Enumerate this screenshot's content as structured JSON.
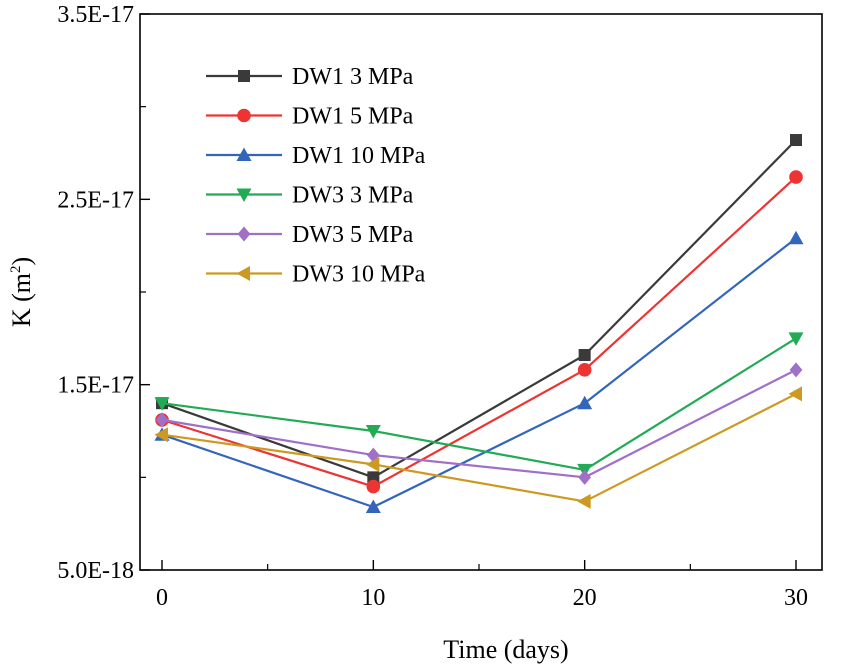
{
  "chart_data": {
    "type": "line",
    "title": "",
    "xlabel": "Time (days)",
    "ylabel": "K (m²)",
    "ylabel_parts": {
      "base": "K (m",
      "sup": "2",
      "close": ")"
    },
    "x": [
      0,
      10,
      20,
      30
    ],
    "xlim": [
      0,
      31
    ],
    "ylim": [
      5e-18,
      3.5e-17
    ],
    "xticks": [
      0,
      10,
      20,
      30
    ],
    "xtick_labels": [
      "0",
      "10",
      "20",
      "30"
    ],
    "yticks": [
      5e-18,
      1.5e-17,
      2.5e-17,
      3.5e-17
    ],
    "ytick_labels": [
      "5.0E-18",
      "1.5E-17",
      "2.5E-17",
      "3.5E-17"
    ],
    "grid": false,
    "legend_position": "top-left",
    "series": [
      {
        "name": "DW1 3 MPa",
        "color": "#3a3a3a",
        "marker": "square",
        "values": [
          1.4e-17,
          1e-17,
          1.66e-17,
          2.82e-17
        ]
      },
      {
        "name": "DW1 5 MPa",
        "color": "#ee3333",
        "marker": "circle",
        "values": [
          1.31e-17,
          9.5e-18,
          1.58e-17,
          2.62e-17
        ]
      },
      {
        "name": "DW1 10 MPa",
        "color": "#3366bb",
        "marker": "triangle-up",
        "values": [
          1.23e-17,
          8.4e-18,
          1.4e-17,
          2.29e-17
        ]
      },
      {
        "name": "DW3 3 MPa",
        "color": "#22aa55",
        "marker": "triangle-down",
        "values": [
          1.4e-17,
          1.25e-17,
          1.04e-17,
          1.75e-17
        ]
      },
      {
        "name": "DW3 5 MPa",
        "color": "#a070c8",
        "marker": "diamond",
        "values": [
          1.31e-17,
          1.12e-17,
          1e-17,
          1.58e-17
        ]
      },
      {
        "name": "DW3 10 MPa",
        "color": "#cc9922",
        "marker": "triangle-left",
        "values": [
          1.23e-17,
          1.07e-17,
          8.7e-18,
          1.45e-17
        ]
      }
    ]
  }
}
